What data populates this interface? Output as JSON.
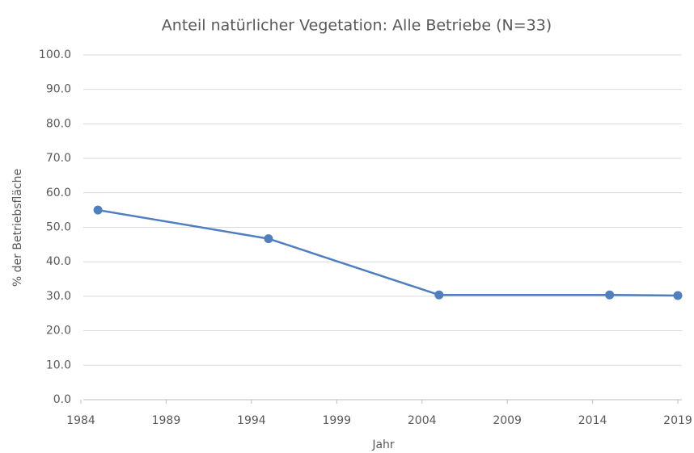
{
  "chart_data": {
    "type": "line",
    "title": "Anteil natürlicher Vegetation: Alle Betriebe (N=33)",
    "x_label": "Jahr",
    "y_label": "% der Betriebsfläche",
    "x": [
      1985,
      1995,
      2005,
      2015,
      2019
    ],
    "series": [
      {
        "name": "Anteil natürlicher Vegetation",
        "color": "#4f7fbf",
        "values": [
          55.0,
          46.7,
          30.4,
          30.4,
          30.2
        ]
      }
    ],
    "xlim": [
      1984,
      2019
    ],
    "xticks": [
      1984,
      1989,
      1994,
      1999,
      2004,
      2009,
      2014,
      2019
    ],
    "ylim": [
      0,
      100
    ],
    "yticks": [
      {
        "value": 0,
        "label": "0.0"
      },
      {
        "value": 10,
        "label": "10.0"
      },
      {
        "value": 20,
        "label": "20.0"
      },
      {
        "value": 30,
        "label": "30.0"
      },
      {
        "value": 40,
        "label": "40.0"
      },
      {
        "value": 50,
        "label": "50.0"
      },
      {
        "value": 60,
        "label": "60.0"
      },
      {
        "value": 70,
        "label": "70.0"
      },
      {
        "value": 80,
        "label": "80.0"
      },
      {
        "value": 90,
        "label": "90.0"
      },
      {
        "value": 100,
        "label": "100.0"
      }
    ],
    "grid": true
  }
}
